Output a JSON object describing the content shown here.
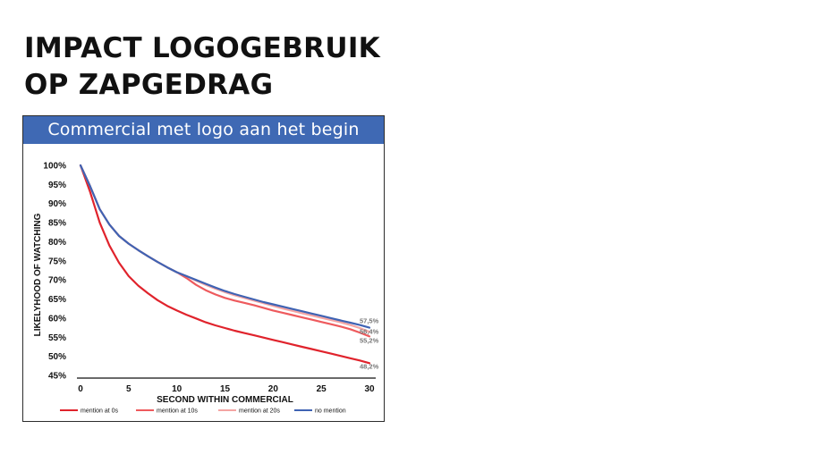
{
  "title": {
    "line1": "IMPACT LOGOGEBRUIK",
    "line2": "OP ZAPGEDRAG"
  },
  "chart_data": {
    "type": "line",
    "title": "Commercial met logo aan het begin",
    "xlabel": "SECOND WITHIN COMMERCIAL",
    "ylabel": "LIKELYHOOD OF WATCHING",
    "xlim": [
      0,
      30
    ],
    "ylim": [
      45,
      100
    ],
    "x_ticks": [
      "0",
      "5",
      "10",
      "15",
      "20",
      "25",
      "30"
    ],
    "y_ticks": [
      "45%",
      "50%",
      "55%",
      "60%",
      "65%",
      "70%",
      "75%",
      "80%",
      "85%",
      "90%",
      "95%",
      "100%"
    ],
    "grid": false,
    "legend_position": "bottom",
    "x": [
      0,
      1,
      2,
      3,
      4,
      5,
      6,
      7,
      8,
      9,
      10,
      11,
      12,
      13,
      14,
      15,
      16,
      17,
      18,
      19,
      20,
      21,
      22,
      23,
      24,
      25,
      26,
      27,
      28,
      29,
      30
    ],
    "series": [
      {
        "name": "mention at 0s",
        "color": "#e0232c",
        "values": [
          100,
          93,
          85,
          79,
          74.5,
          71,
          68.5,
          66.5,
          64.7,
          63.2,
          62,
          60.9,
          59.9,
          58.9,
          58.1,
          57.4,
          56.7,
          56.1,
          55.5,
          54.9,
          54.3,
          53.7,
          53.1,
          52.5,
          51.9,
          51.3,
          50.7,
          50.1,
          49.5,
          48.9,
          48.2
        ],
        "end_label": "48,2%"
      },
      {
        "name": "mention at 10s",
        "color": "#ee5a5d",
        "values": [
          100,
          94.5,
          88.5,
          84.5,
          81.5,
          79.5,
          77.8,
          76.2,
          74.7,
          73.3,
          72,
          70.5,
          68.7,
          67.3,
          66.2,
          65.3,
          64.6,
          64,
          63.4,
          62.7,
          62,
          61.4,
          60.8,
          60.2,
          59.6,
          59,
          58.4,
          57.8,
          57.1,
          56.2,
          55.2
        ],
        "end_label": "55,2%"
      },
      {
        "name": "mention at 20s",
        "color": "#f4a5a3",
        "values": [
          100,
          94.5,
          88.5,
          84.5,
          81.5,
          79.5,
          77.8,
          76.2,
          74.7,
          73.3,
          72,
          71,
          69.8,
          68.7,
          67.7,
          66.8,
          66,
          65.3,
          64.6,
          63.9,
          63.2,
          62.5,
          61.9,
          61.3,
          60.7,
          60.1,
          59.5,
          58.9,
          58.2,
          57.4,
          56.4
        ],
        "end_label": "56,4%"
      },
      {
        "name": "no mention",
        "color": "#3f63b3",
        "values": [
          100,
          94.5,
          88.5,
          84.5,
          81.5,
          79.5,
          77.8,
          76.2,
          74.7,
          73.3,
          72,
          71,
          70,
          69,
          68,
          67.1,
          66.3,
          65.6,
          64.9,
          64.2,
          63.6,
          63,
          62.4,
          61.8,
          61.2,
          60.6,
          60,
          59.4,
          58.8,
          58.2,
          57.5
        ],
        "end_label": "57,5%"
      }
    ]
  }
}
